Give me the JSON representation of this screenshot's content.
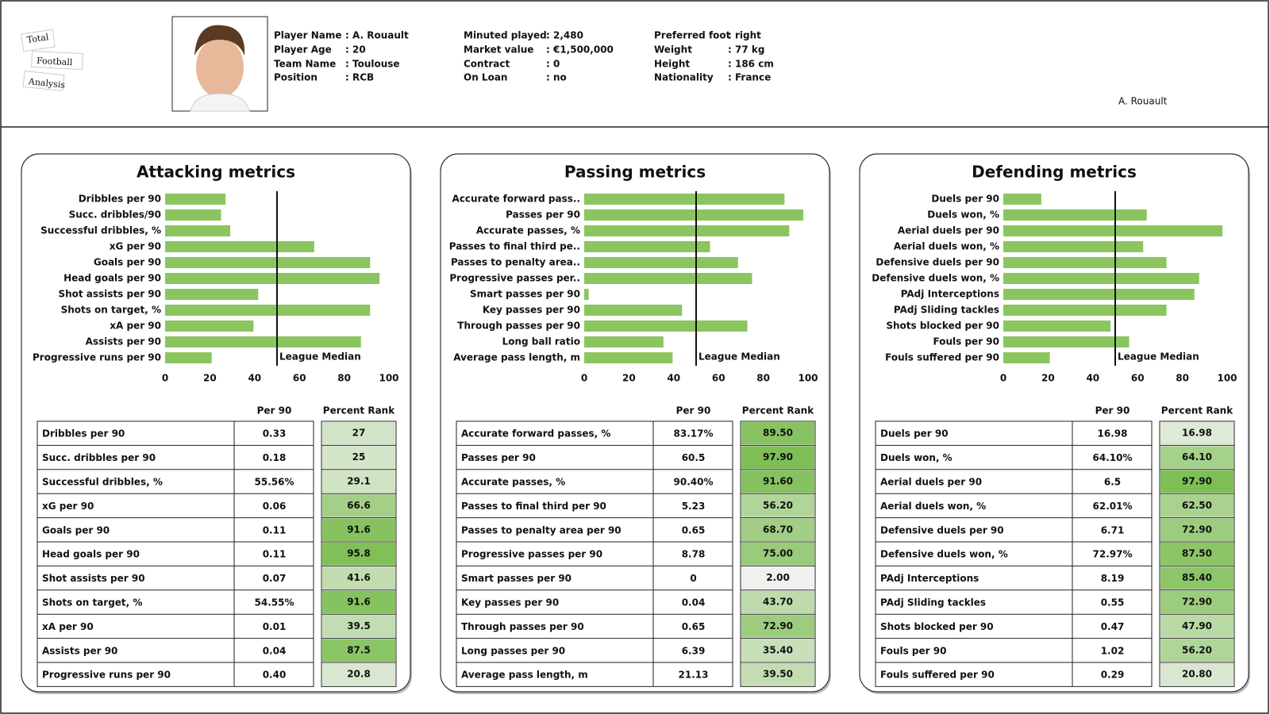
{
  "logo": [
    "Total",
    "Football",
    "Analysis"
  ],
  "header": {
    "columns": [
      [
        {
          "label": "Player Name",
          "value": ": A. Rouault"
        },
        {
          "label": "Player Age",
          "value": ": 20"
        },
        {
          "label": "Team Name",
          "value": ": Toulouse"
        },
        {
          "label": "Position",
          "value": ": RCB"
        }
      ],
      [
        {
          "label": "Minuted played",
          "value": ": 2,480"
        },
        {
          "label": "Market value",
          "value": ": €1,500,000"
        },
        {
          "label": "Contract",
          "value": ": 0"
        },
        {
          "label": "On Loan",
          "value": ": no"
        }
      ],
      [
        {
          "label": "Preferred foot",
          "value": ": right"
        },
        {
          "label": "Weight",
          "value": ": 77 kg"
        },
        {
          "label": "Height",
          "value": ": 186 cm"
        },
        {
          "label": "Nationality",
          "value": ": France"
        }
      ]
    ],
    "caption": "A. Rouault"
  },
  "chart_data": [
    {
      "type": "bar",
      "orientation": "horizontal",
      "title": "Attacking metrics",
      "color": "#8bc55f",
      "categories": [
        "Dribbles per 90",
        "Succ. dribbles/90",
        "Successful dribbles, %",
        "xG per 90",
        "Goals per 90",
        "Head goals per 90",
        "Shot assists per 90",
        "Shots on target, %",
        "xA per 90",
        "Assists per 90",
        "Progressive runs per 90"
      ],
      "values": [
        27,
        25,
        29.1,
        66.6,
        91.6,
        95.8,
        41.6,
        91.6,
        39.5,
        87.5,
        20.8
      ],
      "xlim": [
        0,
        100
      ],
      "xticks": [
        0,
        20,
        40,
        60,
        80,
        100
      ],
      "median": 50,
      "median_label": "League Median"
    },
    {
      "type": "bar",
      "orientation": "horizontal",
      "title": "Passing metrics",
      "color": "#8bc55f",
      "categories": [
        "Accurate forward pass..",
        "Passes per 90",
        "Accurate passes, %",
        "Passes to final third pe..",
        "Passes to penalty area..",
        "Progressive passes per..",
        "Smart passes per 90",
        "Key passes per 90",
        "Through passes per 90",
        "Long ball ratio",
        "Average pass length, m"
      ],
      "values": [
        89.5,
        97.9,
        91.6,
        56.2,
        68.7,
        75,
        2,
        43.7,
        72.9,
        35.4,
        39.5
      ],
      "xlim": [
        0,
        100
      ],
      "xticks": [
        0,
        20,
        40,
        60,
        80,
        100
      ],
      "median": 50,
      "median_label": "League Median"
    },
    {
      "type": "bar",
      "orientation": "horizontal",
      "title": "Defending metrics",
      "color": "#8bc55f",
      "categories": [
        "Duels per 90",
        "Duels won, %",
        "Aerial duels per 90",
        "Aerial duels won, %",
        "Defensive duels per 90",
        "Defensive duels won, %",
        "PAdj Interceptions",
        "PAdj Sliding tackles",
        "Shots blocked per 90",
        "Fouls per 90",
        "Fouls suffered per 90"
      ],
      "values": [
        16.98,
        64.1,
        97.9,
        62.5,
        72.9,
        87.5,
        85.4,
        72.9,
        47.9,
        56.2,
        20.8
      ],
      "xlim": [
        0,
        100
      ],
      "xticks": [
        0,
        20,
        40,
        60,
        80,
        100
      ],
      "median": 50,
      "median_label": "League Median"
    }
  ],
  "tables": [
    {
      "columns": [
        "Per 90",
        "Percent Rank"
      ],
      "rows": [
        [
          "Dribbles per 90",
          "0.33",
          "27"
        ],
        [
          "Succ. dribbles per 90",
          "0.18",
          "25"
        ],
        [
          "Successful dribbles, %",
          "55.56%",
          "29.1"
        ],
        [
          "xG per 90",
          "0.06",
          "66.6"
        ],
        [
          "Goals per 90",
          "0.11",
          "91.6"
        ],
        [
          "Head goals per 90",
          "0.11",
          "95.8"
        ],
        [
          "Shot assists per 90",
          "0.07",
          "41.6"
        ],
        [
          "Shots on target, %",
          "54.55%",
          "91.6"
        ],
        [
          "xA per 90",
          "0.01",
          "39.5"
        ],
        [
          "Assists per 90",
          "0.04",
          "87.5"
        ],
        [
          "Progressive runs per 90",
          "0.40",
          "20.8"
        ]
      ]
    },
    {
      "columns": [
        "Per 90",
        "Percent Rank"
      ],
      "rows": [
        [
          "Accurate forward passes, %",
          "83.17%",
          "89.50"
        ],
        [
          "Passes per 90",
          "60.5",
          "97.90"
        ],
        [
          "Accurate passes, %",
          "90.40%",
          "91.60"
        ],
        [
          "Passes to final third per 90",
          "5.23",
          "56.20"
        ],
        [
          "Passes to penalty area per 90",
          "0.65",
          "68.70"
        ],
        [
          "Progressive passes per 90",
          "8.78",
          "75.00"
        ],
        [
          "Smart passes per 90",
          "0",
          "2.00"
        ],
        [
          "Key passes per 90",
          "0.04",
          "43.70"
        ],
        [
          "Through passes per 90",
          "0.65",
          "72.90"
        ],
        [
          "Long passes per 90",
          "6.39",
          "35.40"
        ],
        [
          "Average pass length, m",
          "21.13",
          "39.50"
        ]
      ]
    },
    {
      "columns": [
        "Per 90",
        "Percent Rank"
      ],
      "rows": [
        [
          "Duels per 90",
          "16.98",
          "16.98"
        ],
        [
          "Duels won, %",
          "64.10%",
          "64.10"
        ],
        [
          "Aerial duels per 90",
          "6.5",
          "97.90"
        ],
        [
          "Aerial duels won, %",
          "62.01%",
          "62.50"
        ],
        [
          "Defensive duels per 90",
          "6.71",
          "72.90"
        ],
        [
          "Defensive duels won, %",
          "72.97%",
          "87.50"
        ],
        [
          "PAdj Interceptions",
          "8.19",
          "85.40"
        ],
        [
          "PAdj Sliding tackles",
          "0.55",
          "72.90"
        ],
        [
          "Shots blocked per 90",
          "0.47",
          "47.90"
        ],
        [
          "Fouls per 90",
          "1.02",
          "56.20"
        ],
        [
          "Fouls suffered per 90",
          "0.29",
          "20.80"
        ]
      ]
    }
  ]
}
